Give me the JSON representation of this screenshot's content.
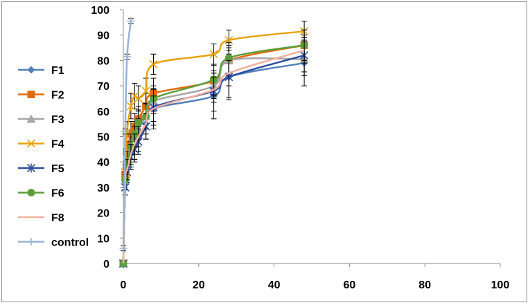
{
  "chart_data": {
    "type": "line",
    "title": "",
    "xlabel": "",
    "ylabel": "",
    "xlim": [
      0,
      100
    ],
    "ylim": [
      0,
      100
    ],
    "x_ticks": [
      "0",
      "20",
      "40",
      "60",
      "80",
      "100"
    ],
    "y_ticks": [
      "0",
      "10",
      "20",
      "30",
      "40",
      "50",
      "60",
      "70",
      "80",
      "90",
      "100"
    ],
    "grid": false,
    "legend_position": "left",
    "x": [
      0,
      0.5,
      1,
      2,
      3,
      4,
      6,
      8,
      24,
      28,
      48
    ],
    "series": [
      {
        "name": "F1",
        "color": "#4f81bd",
        "marker": "diamond",
        "values": [
          0,
          32,
          38,
          43,
          46,
          49,
          55,
          61,
          66,
          73.5,
          79
        ],
        "errors": [
          0,
          3,
          4,
          5,
          5,
          5,
          6,
          8,
          9,
          9,
          9
        ]
      },
      {
        "name": "F2",
        "color": "#e36c0a",
        "marker": "square",
        "values": [
          0,
          35,
          44,
          51,
          54,
          57,
          62,
          67,
          72,
          80,
          86
        ],
        "errors": [
          0,
          3,
          4,
          5,
          5,
          5,
          5,
          6,
          6,
          6,
          6
        ]
      },
      {
        "name": "F3",
        "color": "#a6a6a6",
        "marker": "triangle",
        "values": [
          0,
          34,
          41,
          47,
          50,
          53,
          58,
          64,
          70,
          80,
          80.5
        ],
        "errors": [
          0,
          3,
          3,
          4,
          4,
          4,
          5,
          5,
          5,
          5,
          5
        ]
      },
      {
        "name": "F4",
        "color": "#e8a20c",
        "marker": "x",
        "values": [
          0,
          36,
          52,
          62,
          66,
          65,
          68,
          78.5,
          82.5,
          88,
          91.5
        ],
        "errors": [
          0,
          3,
          4,
          5,
          5,
          5,
          5,
          4,
          4,
          4,
          4
        ]
      },
      {
        "name": "F5",
        "color": "#2e4f9e",
        "marker": "star",
        "values": [
          0,
          30,
          36,
          42,
          45,
          48,
          54,
          61.5,
          68,
          73.5,
          82
        ],
        "errors": [
          0,
          3,
          4,
          5,
          5,
          5,
          5,
          7,
          8,
          8,
          8
        ]
      },
      {
        "name": "F6",
        "color": "#5a9e3a",
        "marker": "circle",
        "values": [
          0,
          33,
          40,
          46,
          51,
          55.5,
          58,
          65,
          72.5,
          81,
          86
        ],
        "errors": [
          0,
          3,
          4,
          5,
          5,
          5,
          5,
          5,
          6,
          6,
          6
        ]
      },
      {
        "name": "F8",
        "color": "#f4b09c",
        "marker": "none",
        "values": [
          0,
          32,
          37,
          43,
          47,
          50,
          55,
          61,
          68.5,
          75,
          84
        ],
        "errors": [
          0,
          3,
          4,
          4,
          4,
          4,
          4,
          5,
          5,
          5,
          5
        ]
      },
      {
        "name": "control",
        "color": "#95b3d7",
        "marker": "plus",
        "x": [
          0,
          0.5,
          1,
          2
        ],
        "values": [
          6,
          52,
          81.5,
          95.5
        ],
        "errors": [
          1,
          1,
          1,
          1
        ]
      }
    ]
  }
}
